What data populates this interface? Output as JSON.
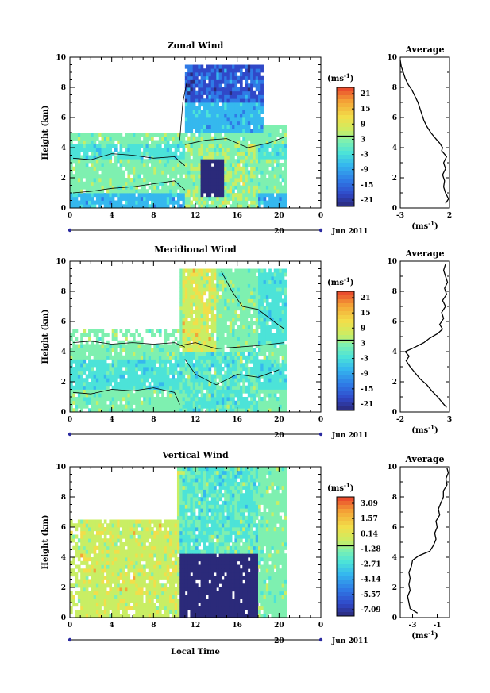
{
  "figure": {
    "x_label": "Local Time",
    "y_label": "Height (km)",
    "date_label": "Jun 2011",
    "day_label": "20",
    "colorbar_unit": "(ms",
    "colorbar_unit_exp": "-1",
    "average_title": "Average",
    "average_unit": "(ms",
    "average_unit_exp": "-1"
  },
  "chart_data": [
    {
      "type": "heatmap",
      "title": "Zonal Wind",
      "xlabel": "",
      "ylabel": "Height (km)",
      "xlim": [
        0,
        24
      ],
      "ylim": [
        0,
        10
      ],
      "x_ticks": [
        "0",
        "4",
        "8",
        "12",
        "16",
        "20",
        "0"
      ],
      "y_ticks": [
        "0",
        "2",
        "4",
        "6",
        "8",
        "10"
      ],
      "colorbar_ticks": [
        "21",
        "15",
        "9",
        "3",
        "-3",
        "-9",
        "-15",
        "-21"
      ],
      "colors": [
        "#2b2a7a",
        "#3048c8",
        "#2f7ae6",
        "#35b8ee",
        "#4ce3d8",
        "#7ef0b0",
        "#c9ee64",
        "#f2de4a",
        "#f4a336",
        "#e8402c"
      ],
      "average": {
        "title": "Average",
        "xlim": [
          -3,
          2
        ],
        "x_ticks": [
          "-3",
          "2"
        ],
        "profile": [
          [
            1.6,
            0.3
          ],
          [
            1.9,
            0.6
          ],
          [
            1.6,
            1.0
          ],
          [
            1.4,
            1.4
          ],
          [
            1.5,
            1.8
          ],
          [
            1.3,
            2.2
          ],
          [
            1.6,
            2.6
          ],
          [
            1.4,
            3.0
          ],
          [
            1.7,
            3.4
          ],
          [
            1.2,
            3.8
          ],
          [
            1.3,
            4.0
          ],
          [
            1.0,
            4.3
          ],
          [
            0.6,
            4.6
          ],
          [
            0.1,
            5.0
          ],
          [
            -0.3,
            5.4
          ],
          [
            -0.6,
            5.8
          ],
          [
            -0.8,
            6.2
          ],
          [
            -1.0,
            6.6
          ],
          [
            -1.2,
            7.0
          ],
          [
            -1.5,
            7.4
          ],
          [
            -1.8,
            7.8
          ],
          [
            -2.2,
            8.2
          ],
          [
            -2.5,
            8.6
          ],
          [
            -2.7,
            9.0
          ],
          [
            -2.9,
            9.4
          ],
          [
            -3.0,
            9.8
          ]
        ]
      }
    },
    {
      "type": "heatmap",
      "title": "Meridional Wind",
      "xlabel": "",
      "ylabel": "Height (km)",
      "xlim": [
        0,
        24
      ],
      "ylim": [
        0,
        10
      ],
      "x_ticks": [
        "0",
        "4",
        "8",
        "12",
        "16",
        "20",
        "0"
      ],
      "y_ticks": [
        "0",
        "2",
        "4",
        "6",
        "8",
        "10"
      ],
      "colorbar_ticks": [
        "21",
        "15",
        "9",
        "3",
        "-3",
        "-9",
        "-15",
        "-21"
      ],
      "colors": [
        "#2b2a7a",
        "#3048c8",
        "#2f7ae6",
        "#35b8ee",
        "#4ce3d8",
        "#7ef0b0",
        "#c9ee64",
        "#f2de4a",
        "#f4a336",
        "#e8402c"
      ],
      "average": {
        "title": "Average",
        "xlim": [
          -2,
          3
        ],
        "x_ticks": [
          "-2",
          "3"
        ],
        "profile": [
          [
            2.7,
            0.3
          ],
          [
            2.3,
            0.6
          ],
          [
            1.8,
            1.0
          ],
          [
            1.2,
            1.4
          ],
          [
            0.7,
            1.8
          ],
          [
            0.0,
            2.2
          ],
          [
            -0.5,
            2.6
          ],
          [
            -1.0,
            3.0
          ],
          [
            -1.4,
            3.4
          ],
          [
            -1.1,
            3.7
          ],
          [
            -1.5,
            4.0
          ],
          [
            -0.5,
            4.3
          ],
          [
            0.4,
            4.6
          ],
          [
            1.0,
            4.9
          ],
          [
            1.8,
            5.2
          ],
          [
            2.3,
            5.5
          ],
          [
            2.0,
            5.8
          ],
          [
            2.4,
            6.2
          ],
          [
            2.2,
            6.6
          ],
          [
            2.6,
            7.0
          ],
          [
            2.3,
            7.4
          ],
          [
            2.7,
            7.8
          ],
          [
            2.5,
            8.2
          ],
          [
            2.8,
            8.6
          ],
          [
            2.6,
            9.0
          ],
          [
            2.4,
            9.4
          ],
          [
            2.6,
            9.8
          ]
        ]
      }
    },
    {
      "type": "heatmap",
      "title": "Vertical Wind",
      "xlabel": "Local Time",
      "ylabel": "Height (km)",
      "xlim": [
        0,
        24
      ],
      "ylim": [
        0,
        10
      ],
      "x_ticks": [
        "0",
        "4",
        "8",
        "12",
        "16",
        "20",
        "0"
      ],
      "y_ticks": [
        "0",
        "2",
        "4",
        "6",
        "8",
        "10"
      ],
      "colorbar_ticks": [
        "3.09",
        "1.57",
        "0.14",
        "-1.28",
        "-2.71",
        "-4.14",
        "-5.57",
        "-7.09"
      ],
      "colors": [
        "#2b2a7a",
        "#3048c8",
        "#2f7ae6",
        "#35b8ee",
        "#4ce3d8",
        "#7ef0b0",
        "#c9ee64",
        "#f2de4a",
        "#f4a336",
        "#e8402c"
      ],
      "average": {
        "title": "Average",
        "xlim": [
          -4,
          0
        ],
        "x_ticks": [
          "-3",
          "-1"
        ],
        "profile": [
          [
            -2.6,
            0.3
          ],
          [
            -3.2,
            0.6
          ],
          [
            -3.3,
            1.0
          ],
          [
            -3.4,
            1.4
          ],
          [
            -3.2,
            1.8
          ],
          [
            -3.3,
            2.2
          ],
          [
            -3.2,
            2.6
          ],
          [
            -3.3,
            3.0
          ],
          [
            -3.1,
            3.4
          ],
          [
            -3.0,
            3.8
          ],
          [
            -2.5,
            4.1
          ],
          [
            -1.6,
            4.4
          ],
          [
            -1.3,
            4.8
          ],
          [
            -1.1,
            5.2
          ],
          [
            -1.2,
            5.6
          ],
          [
            -1.0,
            6.0
          ],
          [
            -1.1,
            6.4
          ],
          [
            -0.8,
            6.8
          ],
          [
            -0.9,
            7.2
          ],
          [
            -0.7,
            7.6
          ],
          [
            -0.5,
            8.0
          ],
          [
            -0.5,
            8.4
          ],
          [
            -0.2,
            8.8
          ],
          [
            -0.3,
            9.2
          ],
          [
            -0.1,
            9.6
          ],
          [
            -0.2,
            9.9
          ]
        ]
      }
    }
  ]
}
